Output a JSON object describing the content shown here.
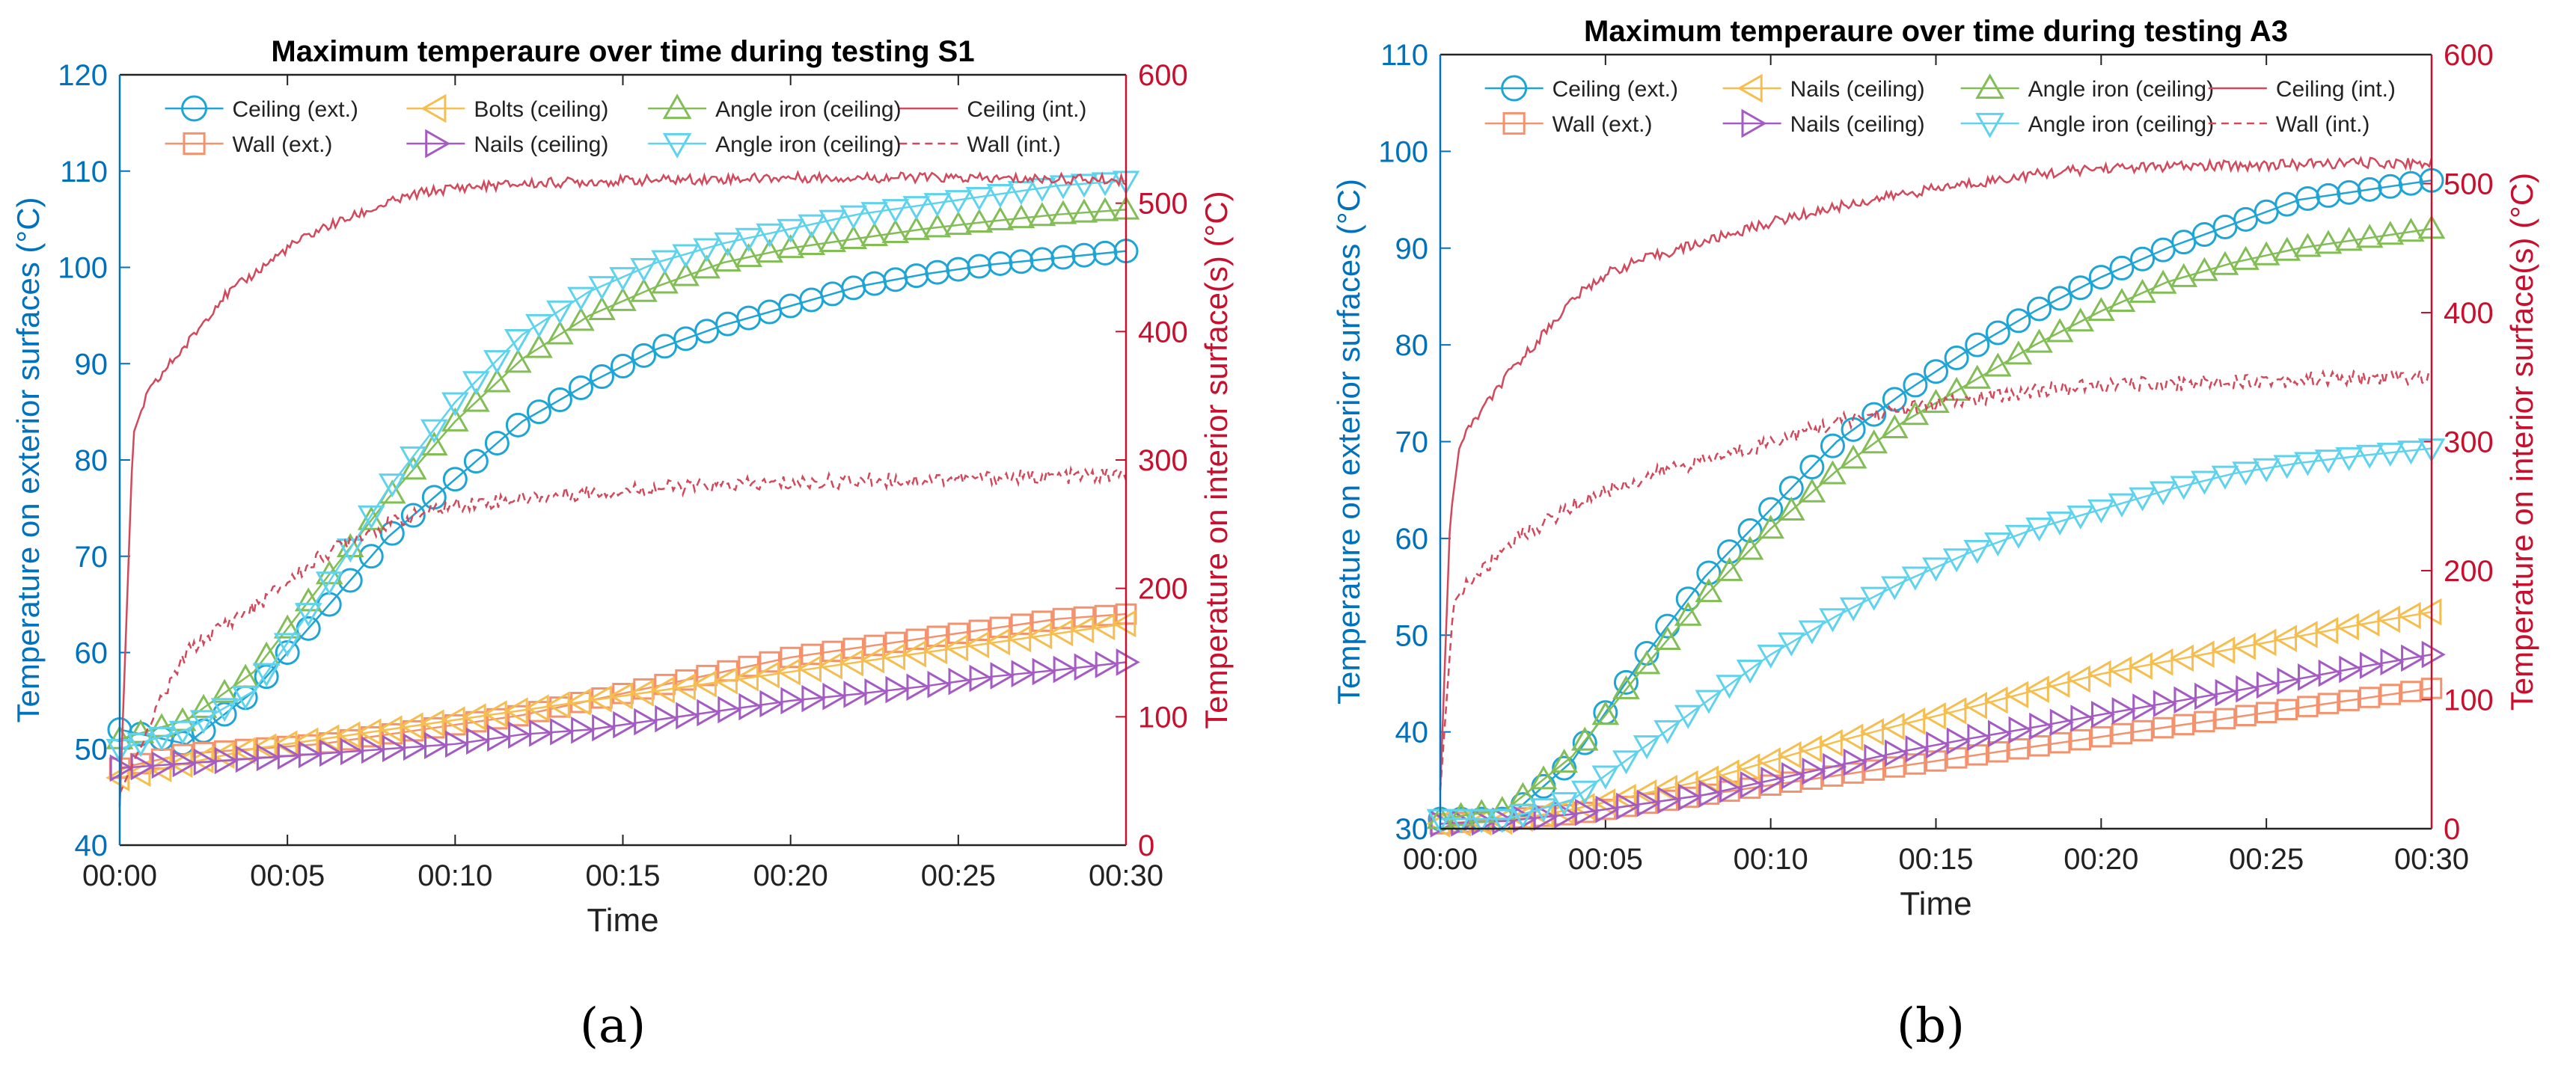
{
  "figure": {
    "subcaption_a": "(a)",
    "subcaption_b": "(b)"
  },
  "colors": {
    "left_axis": "#0072BD",
    "right_axis": "#C8102E",
    "ceiling_ext": "#1EA5D6",
    "wall_ext": "#F4926E",
    "bolts_ceiling": "#F6BE4F",
    "nails_ceiling": "#A45BC3",
    "angle_iron_green": "#82BE55",
    "angle_iron_cyan": "#5FD3EE",
    "ceiling_int": "#D1495B",
    "wall_int": "#D1495B"
  },
  "chart_data": [
    {
      "type": "line",
      "panel": "a",
      "title": "Maximum temperaure over time during testing S1",
      "xlabel": "Time",
      "ylabel_left": "Temperature on exterior surfaces (°C)",
      "ylabel_right": "Temperature on interior surface(s) (°C)",
      "xlim": [
        0,
        30
      ],
      "ylim_left": [
        40,
        120
      ],
      "ylim_right": [
        0,
        600
      ],
      "x_ticks": [
        0,
        5,
        10,
        15,
        20,
        25,
        30
      ],
      "x_tick_labels": [
        "00:00",
        "00:05",
        "00:10",
        "00:15",
        "00:20",
        "00:25",
        "00:30"
      ],
      "y_ticks_left": [
        40,
        50,
        60,
        70,
        80,
        90,
        100,
        110,
        120
      ],
      "y_ticks_right": [
        0,
        100,
        200,
        300,
        400,
        500,
        600
      ],
      "legend": {
        "position": "top",
        "columns": [
          [
            "Ceiling (ext.)",
            "Wall (ext.)"
          ],
          [
            "Bolts (ceiling)",
            "Nails (ceiling)"
          ],
          [
            "Angle iron (ceiling)",
            "Angle iron (ceiling)"
          ],
          [
            "Ceiling (int.)",
            "Wall (int.)"
          ]
        ]
      },
      "series": [
        {
          "name": "Ceiling (ext.)",
          "axis": "left",
          "marker": "circle",
          "color_key": "ceiling_ext",
          "x": [
            0,
            2,
            4,
            6,
            8,
            10,
            12,
            14,
            16,
            18,
            20,
            22,
            24,
            26,
            28,
            30
          ],
          "values": [
            52,
            50.5,
            56,
            64,
            72,
            78,
            84,
            88,
            91.5,
            94,
            96,
            98,
            99.3,
            100.3,
            101,
            101.7
          ]
        },
        {
          "name": "Wall (ext.)",
          "axis": "left",
          "marker": "square",
          "color_key": "wall_ext",
          "x": [
            0,
            2,
            4,
            6,
            8,
            10,
            12,
            14,
            16,
            18,
            20,
            22,
            24,
            26,
            28,
            30
          ],
          "values": [
            48,
            49.5,
            50,
            50.5,
            51.5,
            52.5,
            53.5,
            55,
            56.5,
            58,
            59.5,
            60.5,
            61.5,
            62.5,
            63.5,
            64
          ]
        },
        {
          "name": "Bolts (ceiling)",
          "axis": "left",
          "marker": "triangle-left",
          "color_key": "bolts_ceiling",
          "x": [
            0,
            2,
            4,
            6,
            8,
            10,
            12,
            14,
            16,
            18,
            20,
            22,
            24,
            26,
            28,
            30
          ],
          "values": [
            47,
            48.5,
            50,
            51,
            52,
            53,
            54,
            55,
            56,
            57,
            58,
            59,
            60,
            61,
            62,
            63
          ]
        },
        {
          "name": "Nails (ceiling)",
          "axis": "left",
          "marker": "triangle-right",
          "color_key": "nails_ceiling",
          "x": [
            0,
            2,
            4,
            6,
            8,
            10,
            12,
            14,
            16,
            18,
            20,
            22,
            24,
            26,
            28,
            30
          ],
          "values": [
            48,
            48.5,
            49,
            49.5,
            50,
            50.5,
            51.5,
            52,
            53,
            54,
            55,
            55.7,
            56.5,
            57.5,
            58.2,
            59
          ]
        },
        {
          "name": "Angle iron (ceiling)",
          "axis": "left",
          "marker": "triangle-up",
          "color_key": "angle_iron_green",
          "x": [
            0,
            2,
            4,
            6,
            8,
            10,
            12,
            14,
            16,
            18,
            20,
            22,
            24,
            26,
            28,
            30
          ],
          "values": [
            51,
            53,
            58,
            67,
            76,
            84,
            90.5,
            95,
            98,
            100.5,
            102,
            103,
            104,
            104.8,
            105.5,
            106
          ]
        },
        {
          "name": "Angle iron (ceiling)",
          "axis": "left",
          "marker": "triangle-down",
          "color_key": "angle_iron_cyan",
          "x": [
            0,
            2,
            4,
            6,
            8,
            10,
            12,
            14,
            16,
            18,
            20,
            22,
            24,
            26,
            28,
            30
          ],
          "values": [
            50,
            52,
            56,
            66,
            77,
            86,
            93,
            97.5,
            100.5,
            102.5,
            104,
            105.5,
            106.5,
            107.5,
            108.5,
            109
          ]
        },
        {
          "name": "Ceiling (int.)",
          "axis": "right",
          "style": "solid",
          "color_key": "ceiling_int",
          "x": [
            0,
            0.4,
            0.8,
            1.5,
            2,
            3,
            4,
            5,
            6,
            7,
            8,
            9,
            10,
            12,
            14,
            16,
            18,
            20,
            22,
            24,
            26,
            28,
            30
          ],
          "values": [
            30,
            320,
            350,
            375,
            390,
            425,
            445,
            465,
            480,
            490,
            500,
            508,
            512,
            515,
            517,
            518,
            519,
            520,
            520,
            520,
            519,
            519,
            518
          ]
        },
        {
          "name": "Wall (int.)",
          "axis": "right",
          "style": "dashed",
          "color_key": "wall_int",
          "x": [
            0,
            0.5,
            1,
            2,
            3,
            4,
            5,
            6,
            7,
            8,
            9,
            10,
            12,
            14,
            16,
            18,
            20,
            22,
            24,
            26,
            28,
            30
          ],
          "values": [
            40,
            70,
            100,
            150,
            170,
            185,
            205,
            225,
            240,
            250,
            258,
            265,
            270,
            275,
            278,
            280,
            282,
            284,
            285,
            286,
            287,
            288
          ]
        }
      ]
    },
    {
      "type": "line",
      "panel": "b",
      "title": "Maximum temperaure over time during testing A3",
      "xlabel": "Time",
      "ylabel_left": "Temperature on exterior surfaces (°C)",
      "ylabel_right": "Temperature on interior surface(s) (°C)",
      "xlim": [
        0,
        30
      ],
      "ylim_left": [
        30,
        110
      ],
      "ylim_right": [
        0,
        600
      ],
      "x_ticks": [
        0,
        5,
        10,
        15,
        20,
        25,
        30
      ],
      "x_tick_labels": [
        "00:00",
        "00:05",
        "00:10",
        "00:15",
        "00:20",
        "00:25",
        "00:30"
      ],
      "y_ticks_left": [
        30,
        40,
        50,
        60,
        70,
        80,
        90,
        100,
        110
      ],
      "y_ticks_right": [
        0,
        100,
        200,
        300,
        400,
        500,
        600
      ],
      "legend": {
        "position": "top",
        "columns": [
          [
            "Ceiling (ext.)",
            "Wall (ext.)"
          ],
          [
            "Nails (ceiling)",
            "Nails (ceiling)"
          ],
          [
            "Angle iron (ceiling)",
            "Angle iron (ceiling)"
          ],
          [
            "Ceiling (int.)",
            "Wall (int.)"
          ]
        ]
      },
      "series": [
        {
          "name": "Ceiling (ext.)",
          "axis": "left",
          "marker": "circle",
          "color_key": "ceiling_ext",
          "x": [
            0,
            2,
            4,
            6,
            8,
            10,
            12,
            14,
            16,
            18,
            20,
            22,
            24,
            26,
            28,
            30
          ],
          "values": [
            31,
            31,
            37,
            47,
            56,
            63,
            70,
            75,
            79.5,
            83.5,
            87,
            90,
            92.5,
            95,
            96,
            97
          ]
        },
        {
          "name": "Wall (ext.)",
          "axis": "left",
          "marker": "square",
          "color_key": "wall_ext",
          "x": [
            0,
            2,
            4,
            6,
            8,
            10,
            12,
            14,
            16,
            18,
            20,
            22,
            24,
            26,
            28,
            30
          ],
          "values": [
            30.5,
            31,
            31.5,
            32.5,
            33.5,
            34.5,
            35.5,
            36.5,
            37.5,
            38.5,
            39.5,
            40.5,
            41.5,
            42.5,
            43.5,
            44.5
          ]
        },
        {
          "name": "Nails (ceiling)",
          "axis": "left",
          "marker": "triangle-left",
          "color_key": "bolts_ceiling",
          "x": [
            0,
            2,
            4,
            6,
            8,
            10,
            12,
            14,
            16,
            18,
            20,
            22,
            24,
            26,
            28,
            30
          ],
          "values": [
            30.5,
            30.8,
            32,
            33.5,
            35,
            37,
            39,
            40.8,
            42.5,
            44.3,
            46,
            47.3,
            48.6,
            49.9,
            51.2,
            52.4
          ]
        },
        {
          "name": "Nails (ceiling)",
          "axis": "left",
          "marker": "triangle-right",
          "color_key": "nails_ceiling",
          "x": [
            0,
            2,
            4,
            6,
            8,
            10,
            12,
            14,
            16,
            18,
            20,
            22,
            24,
            26,
            28,
            30
          ],
          "values": [
            30.5,
            30.8,
            31.5,
            32.5,
            33.5,
            35,
            36.5,
            38,
            39.3,
            40.5,
            41.8,
            43,
            44.2,
            45.5,
            46.8,
            48
          ]
        },
        {
          "name": "Angle iron (ceiling)",
          "axis": "left",
          "marker": "triangle-up",
          "color_key": "angle_iron_green",
          "x": [
            0,
            2,
            4,
            6,
            8,
            10,
            12,
            14,
            16,
            18,
            20,
            22,
            24,
            26,
            28,
            30
          ],
          "values": [
            31,
            32,
            37.5,
            46,
            54,
            61,
            67,
            72,
            76,
            80,
            83.5,
            86.5,
            88.5,
            90,
            91,
            92
          ]
        },
        {
          "name": "Angle iron (ceiling)",
          "axis": "left",
          "marker": "triangle-down",
          "color_key": "angle_iron_cyan",
          "x": [
            0,
            2,
            4,
            6,
            8,
            10,
            12,
            14,
            16,
            18,
            20,
            22,
            24,
            26,
            28,
            30
          ],
          "values": [
            31,
            31,
            33,
            38,
            43,
            48,
            52,
            55.5,
            58.5,
            61,
            63,
            65,
            66.7,
            67.8,
            68.6,
            69.3
          ]
        },
        {
          "name": "Ceiling (int.)",
          "axis": "right",
          "style": "solid",
          "color_key": "ceiling_int",
          "x": [
            0,
            0.3,
            0.6,
            1,
            2,
            3,
            4,
            5,
            6,
            8,
            10,
            12,
            14,
            16,
            18,
            20,
            22,
            24,
            26,
            28,
            30
          ],
          "values": [
            30,
            240,
            300,
            315,
            350,
            380,
            410,
            430,
            440,
            455,
            470,
            482,
            492,
            500,
            507,
            512,
            513,
            514,
            515,
            516,
            516
          ]
        },
        {
          "name": "Wall (int.)",
          "axis": "right",
          "style": "dashed",
          "color_key": "wall_int",
          "x": [
            0,
            0.4,
            0.8,
            1.5,
            2,
            3,
            4,
            5,
            6,
            7,
            8,
            10,
            12,
            14,
            16,
            18,
            20,
            22,
            24,
            26,
            28,
            30
          ],
          "values": [
            30,
            175,
            190,
            205,
            220,
            235,
            250,
            262,
            270,
            280,
            285,
            300,
            315,
            325,
            332,
            340,
            343,
            345,
            347,
            348,
            349,
            350
          ]
        }
      ]
    }
  ]
}
